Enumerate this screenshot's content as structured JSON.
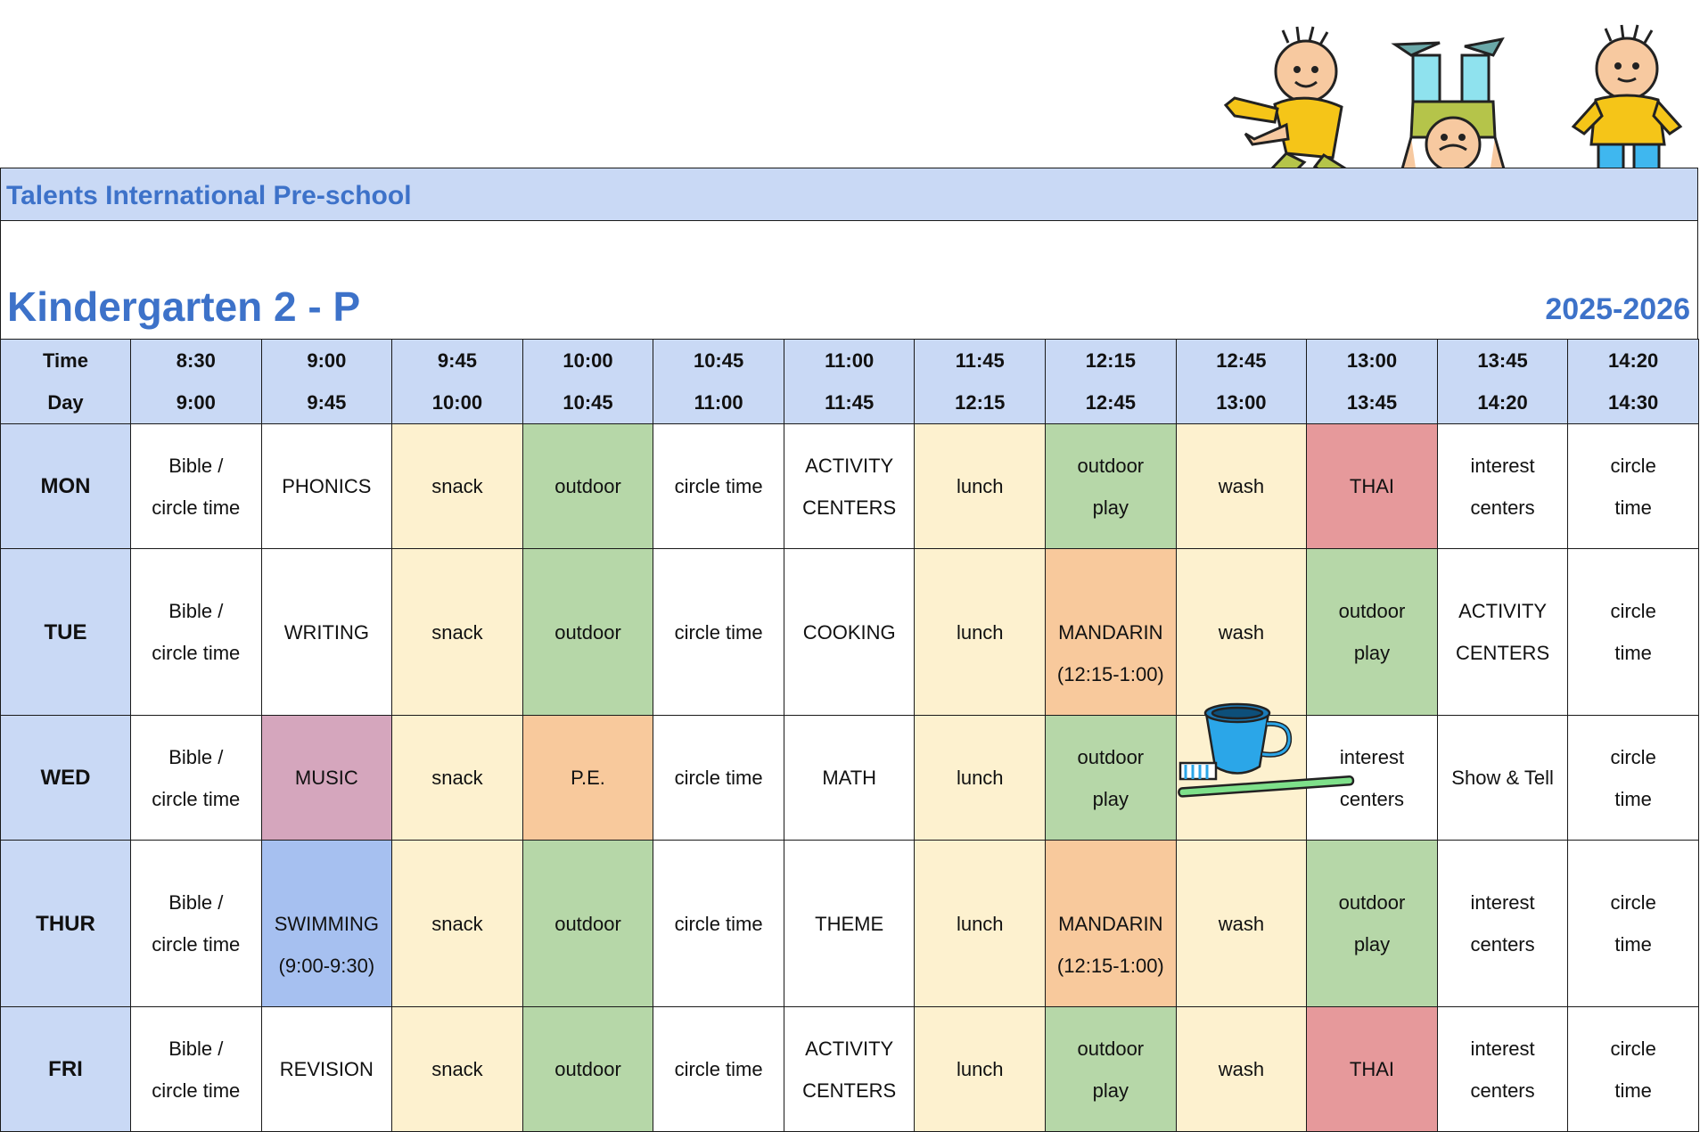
{
  "school_name": "Talents International Pre-school",
  "class_name": "Kindergarten 2 - P",
  "year": "2025-2026",
  "header": {
    "time_label": "Time",
    "day_label": "Day",
    "slots": [
      {
        "start": "8:30",
        "end": "9:00"
      },
      {
        "start": "9:00",
        "end": "9:45"
      },
      {
        "start": "9:45",
        "end": "10:00"
      },
      {
        "start": "10:00",
        "end": "10:45"
      },
      {
        "start": "10:45",
        "end": "11:00"
      },
      {
        "start": "11:00",
        "end": "11:45"
      },
      {
        "start": "11:45",
        "end": "12:15"
      },
      {
        "start": "12:15",
        "end": "12:45"
      },
      {
        "start": "12:45",
        "end": "13:00"
      },
      {
        "start": "13:00",
        "end": "13:45"
      },
      {
        "start": "13:45",
        "end": "14:20"
      },
      {
        "start": "14:20",
        "end": "14:30"
      }
    ]
  },
  "days": [
    {
      "name": "MON",
      "cells": [
        {
          "lines": [
            "Bible /",
            "circle time"
          ],
          "color": "#ffffff"
        },
        {
          "lines": [
            "PHONICS"
          ],
          "color": "#ffffff"
        },
        {
          "lines": [
            "snack"
          ],
          "color": "#fdf1cf"
        },
        {
          "lines": [
            "outdoor"
          ],
          "color": "#b6d7a8"
        },
        {
          "lines": [
            "circle time"
          ],
          "color": "#ffffff"
        },
        {
          "lines": [
            "ACTIVITY",
            "CENTERS"
          ],
          "color": "#ffffff"
        },
        {
          "lines": [
            "lunch"
          ],
          "color": "#fdf1cf"
        },
        {
          "lines": [
            "outdoor",
            "play"
          ],
          "color": "#b6d7a8"
        },
        {
          "lines": [
            "wash"
          ],
          "color": "#fdf1cf"
        },
        {
          "lines": [
            "THAI"
          ],
          "color": "#e6999b"
        },
        {
          "lines": [
            "interest",
            "centers"
          ],
          "color": "#ffffff"
        },
        {
          "lines": [
            "circle",
            "time"
          ],
          "color": "#ffffff"
        }
      ]
    },
    {
      "name": "TUE",
      "cells": [
        {
          "lines": [
            "Bible /",
            "circle time"
          ],
          "color": "#ffffff"
        },
        {
          "lines": [
            "WRITING"
          ],
          "color": "#ffffff"
        },
        {
          "lines": [
            "snack"
          ],
          "color": "#fdf1cf"
        },
        {
          "lines": [
            "outdoor"
          ],
          "color": "#b6d7a8"
        },
        {
          "lines": [
            "circle time"
          ],
          "color": "#ffffff"
        },
        {
          "lines": [
            "COOKING"
          ],
          "color": "#ffffff"
        },
        {
          "lines": [
            "lunch"
          ],
          "color": "#fdf1cf"
        },
        {
          "lines": [
            "MANDARIN",
            "(12:15-1:00)"
          ],
          "color": "#f8c99c",
          "offset": true
        },
        {
          "lines": [
            "wash"
          ],
          "color": "#fdf1cf"
        },
        {
          "lines": [
            "outdoor",
            "play"
          ],
          "color": "#b6d7a8"
        },
        {
          "lines": [
            "ACTIVITY",
            "CENTERS"
          ],
          "color": "#ffffff"
        },
        {
          "lines": [
            "circle",
            "time"
          ],
          "color": "#ffffff"
        }
      ]
    },
    {
      "name": "WED",
      "cells": [
        {
          "lines": [
            "Bible /",
            "circle time"
          ],
          "color": "#ffffff"
        },
        {
          "lines": [
            "MUSIC"
          ],
          "color": "#d5a6bd"
        },
        {
          "lines": [
            "snack"
          ],
          "color": "#fdf1cf"
        },
        {
          "lines": [
            "P.E."
          ],
          "color": "#f8c99c"
        },
        {
          "lines": [
            "circle time"
          ],
          "color": "#ffffff"
        },
        {
          "lines": [
            "MATH"
          ],
          "color": "#ffffff"
        },
        {
          "lines": [
            "lunch"
          ],
          "color": "#fdf1cf"
        },
        {
          "lines": [
            "outdoor",
            "play"
          ],
          "color": "#b6d7a8"
        },
        {
          "lines": [],
          "color": "#fdf1cf"
        },
        {
          "lines": [
            "interest",
            "centers"
          ],
          "color": "#ffffff"
        },
        {
          "lines": [
            "Show & Tell"
          ],
          "color": "#ffffff"
        },
        {
          "lines": [
            "circle",
            "time"
          ],
          "color": "#ffffff"
        }
      ]
    },
    {
      "name": "THUR",
      "cells": [
        {
          "lines": [
            "Bible /",
            "circle time"
          ],
          "color": "#ffffff"
        },
        {
          "lines": [
            "SWIMMING",
            "(9:00-9:30)"
          ],
          "color": "#a6c0f0",
          "offset": true
        },
        {
          "lines": [
            "snack"
          ],
          "color": "#fdf1cf"
        },
        {
          "lines": [
            "outdoor"
          ],
          "color": "#b6d7a8"
        },
        {
          "lines": [
            "circle time"
          ],
          "color": "#ffffff"
        },
        {
          "lines": [
            "THEME"
          ],
          "color": "#ffffff"
        },
        {
          "lines": [
            "lunch"
          ],
          "color": "#fdf1cf"
        },
        {
          "lines": [
            "MANDARIN",
            "(12:15-1:00)"
          ],
          "color": "#f8c99c",
          "offset": true
        },
        {
          "lines": [
            "wash"
          ],
          "color": "#fdf1cf"
        },
        {
          "lines": [
            "outdoor",
            "play"
          ],
          "color": "#b6d7a8"
        },
        {
          "lines": [
            "interest",
            "centers"
          ],
          "color": "#ffffff"
        },
        {
          "lines": [
            "circle",
            "time"
          ],
          "color": "#ffffff"
        }
      ]
    },
    {
      "name": "FRI",
      "cells": [
        {
          "lines": [
            "Bible /",
            "circle time"
          ],
          "color": "#ffffff"
        },
        {
          "lines": [
            "REVISION"
          ],
          "color": "#ffffff"
        },
        {
          "lines": [
            "snack"
          ],
          "color": "#fdf1cf"
        },
        {
          "lines": [
            "outdoor"
          ],
          "color": "#b6d7a8"
        },
        {
          "lines": [
            "circle time"
          ],
          "color": "#ffffff"
        },
        {
          "lines": [
            "ACTIVITY",
            "CENTERS"
          ],
          "color": "#ffffff"
        },
        {
          "lines": [
            "lunch"
          ],
          "color": "#fdf1cf"
        },
        {
          "lines": [
            "outdoor",
            "play"
          ],
          "color": "#b6d7a8"
        },
        {
          "lines": [
            "wash"
          ],
          "color": "#fdf1cf"
        },
        {
          "lines": [
            "THAI"
          ],
          "color": "#e6999b"
        },
        {
          "lines": [
            "interest",
            "centers"
          ],
          "color": "#ffffff"
        },
        {
          "lines": [
            "circle",
            "time"
          ],
          "color": "#ffffff"
        }
      ]
    }
  ],
  "illustrations": {
    "header_art": "cartoon-kids-icon",
    "wash_art": "cup-and-toothbrush-icon"
  }
}
